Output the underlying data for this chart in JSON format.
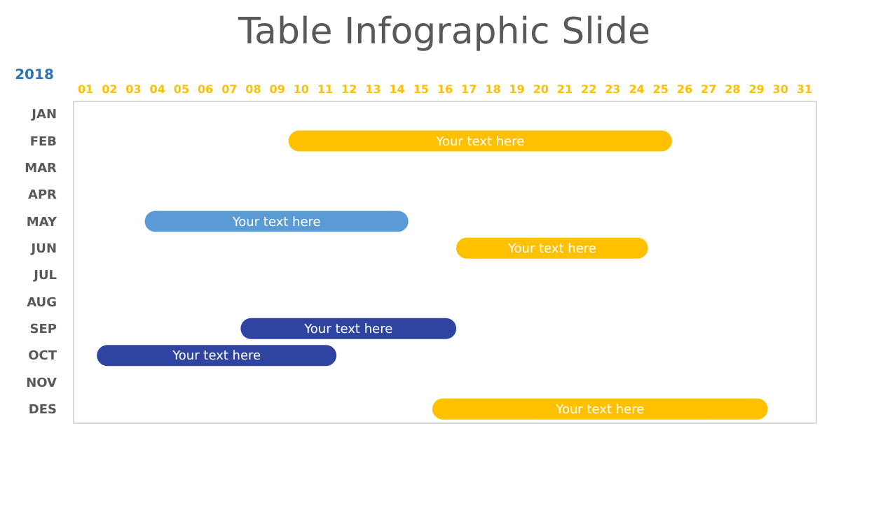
{
  "chart_data": {
    "type": "bar",
    "orientation": "horizontal",
    "title": "Table Infographic Slide",
    "ylabel": "2018",
    "categories": [
      "JAN",
      "FEB",
      "MAR",
      "APR",
      "MAY",
      "JUN",
      "JUL",
      "AUG",
      "SEP",
      "OCT",
      "NOV",
      "DES"
    ],
    "base": [
      null,
      9,
      null,
      null,
      3,
      16,
      null,
      null,
      7,
      1,
      null,
      15
    ],
    "values": [
      null,
      16,
      null,
      null,
      11,
      8,
      null,
      null,
      9,
      10,
      null,
      14
    ],
    "colors": [
      "#ffc000",
      "#ffc000",
      "#ffc000",
      "#ffc000",
      "#5b9bd5",
      "#ffc000",
      "#ffc000",
      "#ffc000",
      "#2e44a0",
      "#2e44a0",
      "#ffc000",
      "#ffc000"
    ],
    "value_labels": [
      null,
      "Your text here",
      null,
      null,
      "Your text here",
      "Your text here",
      null,
      null,
      "Your text here",
      "Your text here",
      null,
      "Your text here"
    ],
    "xlim": [
      0,
      31
    ],
    "xticks": [
      {
        "value": 0.5,
        "label": "01"
      },
      {
        "value": 1.5,
        "label": "02"
      },
      {
        "value": 2.5,
        "label": "03"
      },
      {
        "value": 3.5,
        "label": "04"
      },
      {
        "value": 4.5,
        "label": "05"
      },
      {
        "value": 5.5,
        "label": "06"
      },
      {
        "value": 6.5,
        "label": "07"
      },
      {
        "value": 7.5,
        "label": "08"
      },
      {
        "value": 8.5,
        "label": "09"
      },
      {
        "value": 9.5,
        "label": "10"
      },
      {
        "value": 10.5,
        "label": "11"
      },
      {
        "value": 11.5,
        "label": "12"
      },
      {
        "value": 12.5,
        "label": "13"
      },
      {
        "value": 13.5,
        "label": "14"
      },
      {
        "value": 14.5,
        "label": "15"
      },
      {
        "value": 15.5,
        "label": "16"
      },
      {
        "value": 16.5,
        "label": "17"
      },
      {
        "value": 17.5,
        "label": "18"
      },
      {
        "value": 18.5,
        "label": "19"
      },
      {
        "value": 19.5,
        "label": "20"
      },
      {
        "value": 20.5,
        "label": "21"
      },
      {
        "value": 21.5,
        "label": "22"
      },
      {
        "value": 22.5,
        "label": "23"
      },
      {
        "value": 23.5,
        "label": "24"
      },
      {
        "value": 24.5,
        "label": "25"
      },
      {
        "value": 25.5,
        "label": "26"
      },
      {
        "value": 26.5,
        "label": "27"
      },
      {
        "value": 27.5,
        "label": "28"
      },
      {
        "value": 28.5,
        "label": "29"
      },
      {
        "value": 29.5,
        "label": "30"
      },
      {
        "value": 30.5,
        "label": "31"
      }
    ],
    "grid": false
  }
}
